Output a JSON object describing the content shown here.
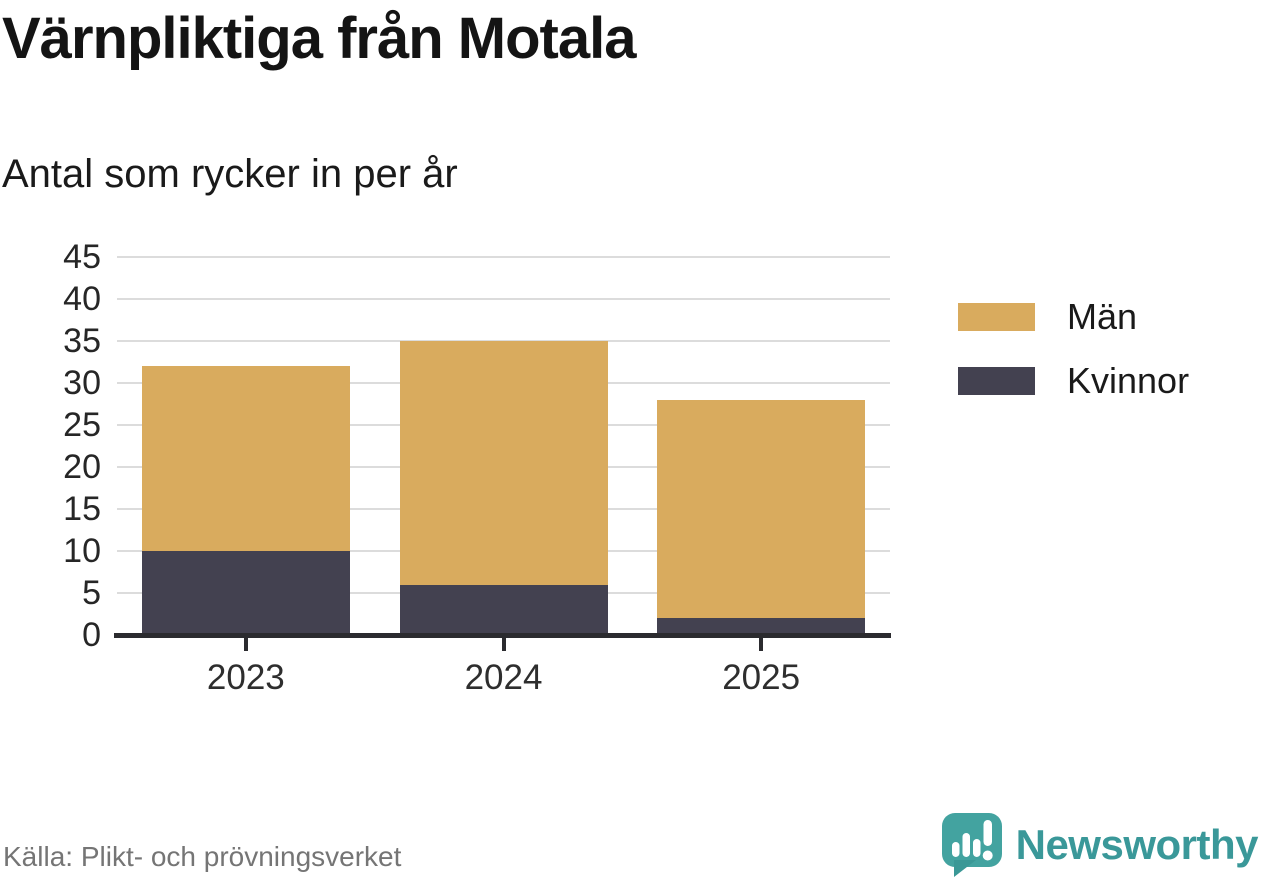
{
  "title": "Värnpliktiga från Motala",
  "subtitle": "Antal som rycker in per år",
  "source": "Källa: Plikt- och prövningsverket",
  "brand": {
    "name": "Newsworthy",
    "icon": "newsworthy-speech-bubble-chart-icon",
    "color": "#3a9899"
  },
  "legend": [
    {
      "label": "Män",
      "color": "#d9ab5e"
    },
    {
      "label": "Kvinnor",
      "color": "#434150"
    }
  ],
  "chart_data": {
    "type": "bar",
    "stacked": true,
    "title": "Värnpliktiga från Motala",
    "subtitle": "Antal som rycker in per år",
    "categories": [
      "2023",
      "2024",
      "2025"
    ],
    "series": [
      {
        "name": "Kvinnor",
        "color": "#434150",
        "values": [
          10,
          6,
          2
        ]
      },
      {
        "name": "Män",
        "color": "#d9ab5e",
        "values": [
          22,
          29,
          26
        ]
      }
    ],
    "stack_order": "bottom_to_top",
    "totals": [
      32,
      35,
      28
    ],
    "xlabel": "",
    "ylabel": "",
    "ylim": [
      0,
      45
    ],
    "y_ticks": [
      0,
      5,
      10,
      15,
      20,
      25,
      30,
      35,
      40,
      45
    ],
    "grid": true,
    "legend_position": "right"
  }
}
